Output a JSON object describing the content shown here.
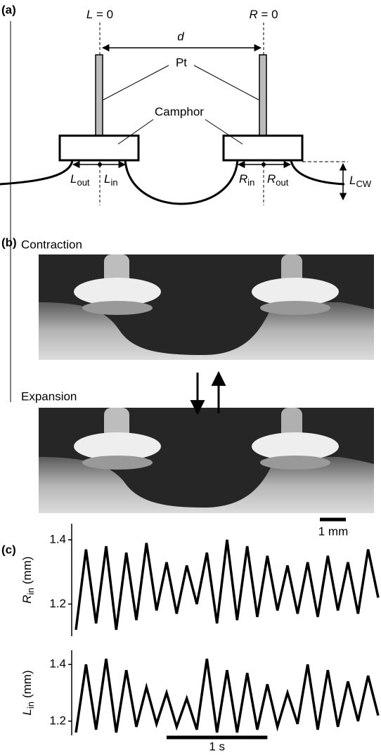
{
  "panel_a": {
    "label": "(a)",
    "left_origin": {
      "main": "L",
      "rest": " = 0"
    },
    "right_origin": {
      "main": "R",
      "rest": " = 0"
    },
    "distance": "d",
    "pt": "Pt",
    "camphor": "Camphor",
    "l_out": {
      "main": "L",
      "sub": "out"
    },
    "l_in": {
      "main": "L",
      "sub": "in"
    },
    "r_in": {
      "main": "R",
      "sub": "in"
    },
    "r_out": {
      "main": "R",
      "sub": "out"
    },
    "l_cw": {
      "main": "L",
      "sub": "CW"
    }
  },
  "panel_b": {
    "label": "(b)",
    "top_caption": "Contraction",
    "bottom_caption": "Expansion",
    "scale_bar": "1 mm"
  },
  "panel_c": {
    "label": "(c)"
  },
  "chart_data": [
    {
      "type": "line",
      "y_label": {
        "main": "R",
        "sub": "in",
        "unit": "(mm)"
      },
      "x": [
        0,
        0.1,
        0.2,
        0.3,
        0.4,
        0.5,
        0.6,
        0.7,
        0.8,
        0.9,
        1.0,
        1.1,
        1.2,
        1.3,
        1.4,
        1.5,
        1.6,
        1.7,
        1.8,
        1.9,
        2.0,
        2.1,
        2.2,
        2.3,
        2.4,
        2.5,
        2.6,
        2.7,
        2.8,
        2.9,
        3.0
      ],
      "values": [
        1.12,
        1.37,
        1.14,
        1.38,
        1.12,
        1.36,
        1.15,
        1.39,
        1.18,
        1.33,
        1.17,
        1.32,
        1.2,
        1.36,
        1.14,
        1.4,
        1.15,
        1.38,
        1.16,
        1.35,
        1.18,
        1.32,
        1.17,
        1.33,
        1.16,
        1.35,
        1.18,
        1.33,
        1.17,
        1.37,
        1.22
      ],
      "color": "#000000",
      "xlim": [
        0,
        3
      ],
      "ylim": [
        1.1,
        1.45
      ],
      "yticks": [
        1.2,
        1.4
      ]
    },
    {
      "type": "line",
      "y_label": {
        "main": "L",
        "sub": "in",
        "unit": "(mm)"
      },
      "x": [
        0,
        0.1,
        0.2,
        0.3,
        0.4,
        0.5,
        0.6,
        0.7,
        0.8,
        0.9,
        1.0,
        1.1,
        1.2,
        1.3,
        1.4,
        1.5,
        1.6,
        1.7,
        1.8,
        1.9,
        2.0,
        2.1,
        2.2,
        2.3,
        2.4,
        2.5,
        2.6,
        2.7,
        2.8,
        2.9,
        3.0
      ],
      "values": [
        1.16,
        1.4,
        1.17,
        1.42,
        1.16,
        1.38,
        1.18,
        1.32,
        1.19,
        1.3,
        1.18,
        1.28,
        1.17,
        1.42,
        1.16,
        1.38,
        1.16,
        1.37,
        1.17,
        1.33,
        1.18,
        1.3,
        1.19,
        1.4,
        1.17,
        1.38,
        1.18,
        1.34,
        1.2,
        1.36,
        1.22
      ],
      "color": "#000000",
      "xlim": [
        0,
        3
      ],
      "ylim": [
        1.15,
        1.45
      ],
      "yticks": [
        1.2,
        1.4
      ],
      "scale_bar": {
        "value": 1,
        "label": "1 s"
      }
    }
  ]
}
